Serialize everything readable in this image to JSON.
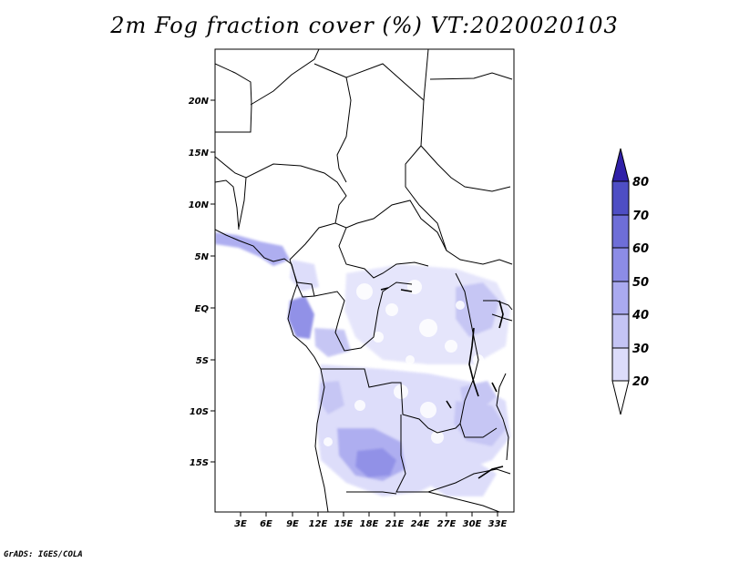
{
  "title": "2m Fog fraction cover (%) VT:2020020103",
  "credit": "GrADS: IGES/COLA",
  "map": {
    "lat_labels": [
      "20N",
      "15N",
      "10N",
      "5N",
      "EQ",
      "5S",
      "10S",
      "15S"
    ],
    "lon_labels": [
      "3E",
      "6E",
      "9E",
      "12E",
      "15E",
      "18E",
      "21E",
      "24E",
      "27E",
      "30E",
      "33E"
    ]
  },
  "colorbar": {
    "levels": [
      "20",
      "30",
      "40",
      "50",
      "60",
      "70",
      "80"
    ],
    "colors": [
      "#dcdcfa",
      "#c4c4f4",
      "#aaaaf0",
      "#8c8ce6",
      "#6e6ed8",
      "#4e4ec4",
      "#3020a8"
    ]
  }
}
